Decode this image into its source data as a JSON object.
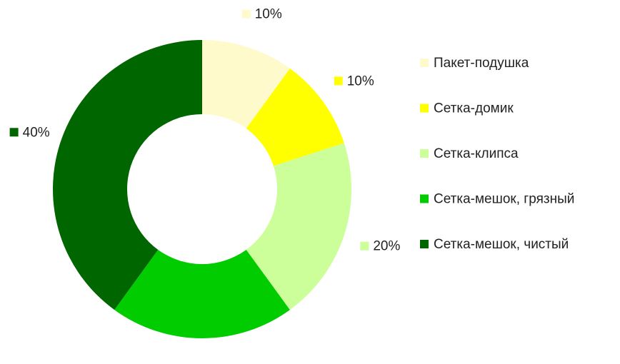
{
  "chart_data": {
    "type": "donut",
    "categories": [
      "Пакет-подушка",
      "Сетка-домик",
      "Сетка-клипса",
      "Сетка-мешок, грязный",
      "Сетка-мешок, чистый"
    ],
    "values": [
      10,
      10,
      20,
      20,
      40
    ],
    "value_labels": [
      "10%",
      "10%",
      "20%",
      "20%",
      "40%"
    ],
    "colors": [
      "#fffacc",
      "#ffff00",
      "#ccff99",
      "#00cc00",
      "#006600"
    ],
    "legend": "right"
  }
}
